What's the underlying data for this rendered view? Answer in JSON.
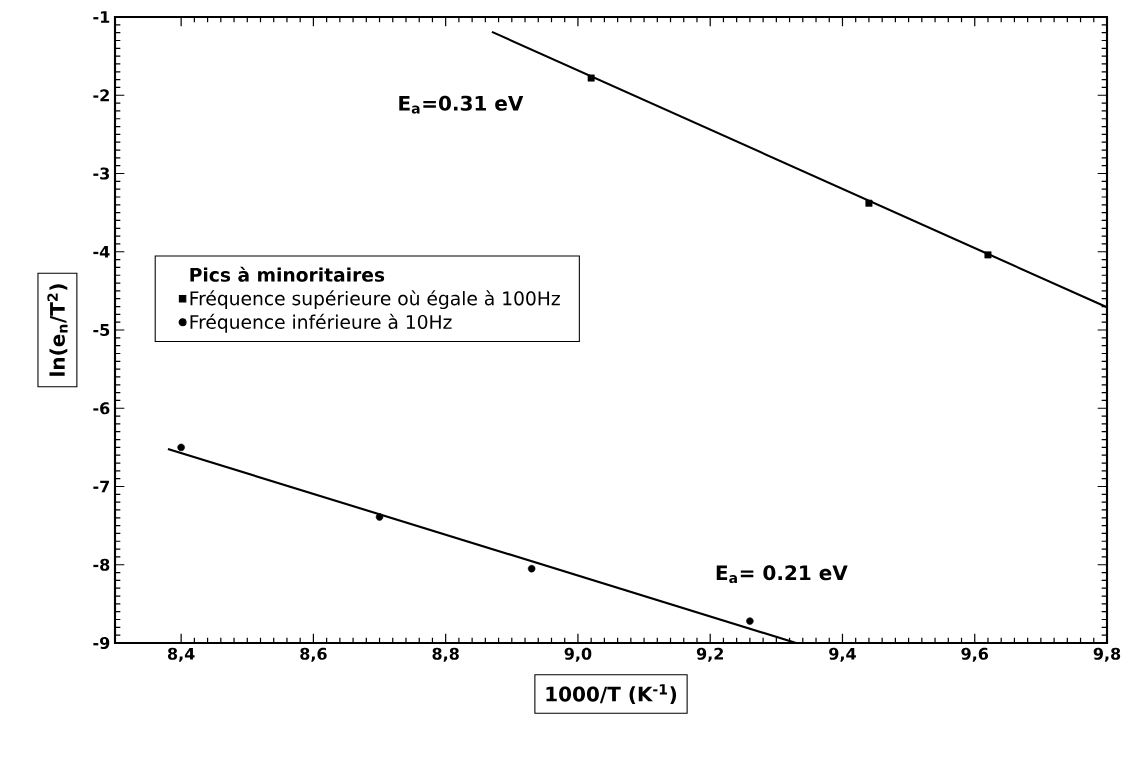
{
  "chart_data": {
    "type": "scatter",
    "xlabel": "1000/T (K$^{-1}$)",
    "ylabel": "ln(e$_{n}$/T$^{2}$)",
    "legend_title": "Pics à minoritaires",
    "legend": "left",
    "grid": false,
    "xlim": [
      8.3,
      9.8
    ],
    "ylim": [
      -9,
      -1
    ],
    "xticks": [
      {
        "value": 8.4,
        "label": "8,4"
      },
      {
        "value": 8.6,
        "label": "8,6"
      },
      {
        "value": 8.8,
        "label": "8,8"
      },
      {
        "value": 9.0,
        "label": "9,0"
      },
      {
        "value": 9.2,
        "label": "9,2"
      },
      {
        "value": 9.4,
        "label": "9,4"
      },
      {
        "value": 9.6,
        "label": "9,6"
      },
      {
        "value": 9.8,
        "label": "9,8"
      }
    ],
    "yticks": [
      -9,
      -8,
      -7,
      -6,
      -5,
      -4,
      -3,
      -2,
      -1
    ],
    "series": [
      {
        "name": "Fréquence supérieure où égale à 100Hz",
        "marker": "square",
        "color": "#000000",
        "x": [
          9.02,
          9.44,
          9.62
        ],
        "values": [
          -1.78,
          -3.38,
          -4.04
        ]
      },
      {
        "name": "Fréquence inférieure à 10Hz",
        "marker": "circle",
        "color": "#000000",
        "x": [
          8.4,
          8.7,
          8.93,
          9.26
        ],
        "values": [
          -6.5,
          -7.39,
          -8.05,
          -8.72
        ]
      },
      {
        "type": "line",
        "marker": "none",
        "color": "#000000",
        "x": [
          8.87,
          9.8
        ],
        "values": [
          -1.19,
          -4.71
        ]
      },
      {
        "type": "line",
        "marker": "none",
        "color": "#000000",
        "x": [
          8.38,
          9.33
        ],
        "values": [
          -6.52,
          -9.0
        ]
      }
    ],
    "annotations": [
      "E$_{a}$=0.31 eV",
      "E$_{a}$= 0.21 eV"
    ]
  }
}
